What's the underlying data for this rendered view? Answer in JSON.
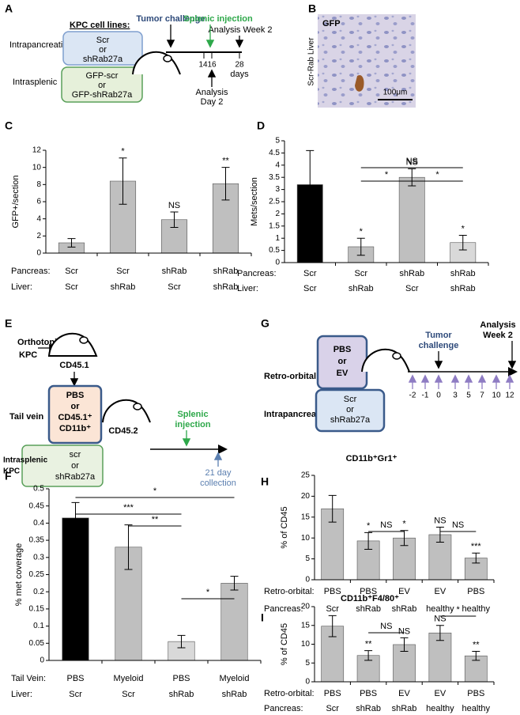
{
  "chart_data": [
    {
      "type": "bar",
      "label": "C",
      "ylabel": "GFP+/section",
      "ylim": [
        0,
        12
      ],
      "yticks": [
        0,
        2,
        4,
        6,
        8,
        10,
        12
      ],
      "values": [
        1.2,
        8.4,
        3.9,
        8.1
      ],
      "errors": [
        0.5,
        2.7,
        0.9,
        1.9
      ],
      "colors": [
        "#bfbfbf",
        "#bfbfbf",
        "#bfbfbf",
        "#bfbfbf"
      ],
      "annotations": [
        {
          "index": 1,
          "text": "*"
        },
        {
          "index": 2,
          "text": "NS"
        },
        {
          "index": 3,
          "text": "**"
        }
      ],
      "comparisons": [],
      "rows": [
        {
          "label": "Pancreas:",
          "values": [
            "Scr",
            "Scr",
            "shRab",
            "shRab"
          ]
        },
        {
          "label": "Liver:",
          "values": [
            "Scr",
            "shRab",
            "Scr",
            "shRab"
          ]
        }
      ]
    },
    {
      "type": "bar",
      "label": "D",
      "ylabel": "Mets/section",
      "ylim": [
        0,
        5
      ],
      "yticks": [
        0,
        0.5,
        1,
        1.5,
        2,
        2.5,
        3,
        3.5,
        4,
        4.5,
        5
      ],
      "values": [
        3.2,
        0.65,
        3.5,
        0.82
      ],
      "errors": [
        1.4,
        0.35,
        0.35,
        0.3
      ],
      "colors": [
        "#000000",
        "#bfbfbf",
        "#bfbfbf",
        "#d9d9d9"
      ],
      "annotations": [
        {
          "index": 1,
          "text": "*"
        },
        {
          "index": 2,
          "text": "NS"
        },
        {
          "index": 3,
          "text": "*"
        }
      ],
      "comparisons": [
        {
          "from": 1,
          "to": 2,
          "text": "*"
        },
        {
          "from": 2,
          "to": 3,
          "text": "*"
        },
        {
          "from": 1,
          "to": 3,
          "text": "NS"
        }
      ],
      "rows": [
        {
          "label": "Pancreas:",
          "values": [
            "Scr",
            "Scr",
            "shRab",
            "shRab"
          ]
        },
        {
          "label": "Liver:",
          "values": [
            "Scr",
            "shRab",
            "Scr",
            "shRab"
          ]
        }
      ]
    },
    {
      "type": "bar",
      "label": "F",
      "ylabel": "% met coverage",
      "ylim": [
        0,
        0.5
      ],
      "yticks": [
        0,
        0.05,
        0.1,
        0.15,
        0.2,
        0.25,
        0.3,
        0.35,
        0.4,
        0.45,
        0.5
      ],
      "values": [
        0.415,
        0.33,
        0.055,
        0.225
      ],
      "errors": [
        0.045,
        0.065,
        0.018,
        0.02
      ],
      "colors": [
        "#000000",
        "#bfbfbf",
        "#d9d9d9",
        "#bfbfbf"
      ],
      "annotations": [],
      "comparisons": [
        {
          "from": 0,
          "to": 3,
          "text": "*"
        },
        {
          "from": 0,
          "to": 2,
          "text": "***"
        },
        {
          "from": 1,
          "to": 2,
          "text": "**"
        },
        {
          "from": 2,
          "to": 3,
          "text": "*"
        }
      ],
      "rows": [
        {
          "label": "Tail Vein:",
          "values": [
            "PBS",
            "Myeloid",
            "PBS",
            "Myeloid"
          ]
        },
        {
          "label": "Liver:",
          "values": [
            "Scr",
            "Scr",
            "shRab",
            "shRab"
          ]
        }
      ]
    },
    {
      "type": "bar",
      "label": "H",
      "title": "CD11b⁺Gr1⁺",
      "ylabel": "% of CD45",
      "ylim": [
        0,
        25
      ],
      "yticks": [
        0,
        5,
        10,
        15,
        20,
        25
      ],
      "values": [
        17,
        9.3,
        10,
        10.8,
        5.2
      ],
      "errors": [
        3.2,
        2,
        1.8,
        1.8,
        1.2
      ],
      "colors": [
        "#bfbfbf",
        "#bfbfbf",
        "#bfbfbf",
        "#bfbfbf",
        "#bfbfbf"
      ],
      "annotations": [
        {
          "index": 1,
          "text": "*"
        },
        {
          "index": 2,
          "text": "*"
        },
        {
          "index": 3,
          "text": "NS"
        },
        {
          "index": 4,
          "text": "***"
        }
      ],
      "comparisons": [
        {
          "from": 1,
          "to": 2,
          "text": "NS"
        },
        {
          "from": 3,
          "to": 4,
          "text": "NS"
        }
      ],
      "rows": [
        {
          "label": "Retro-orbital:",
          "values": [
            "PBS",
            "PBS",
            "EV",
            "EV",
            "PBS"
          ]
        },
        {
          "label": "Pancreas:",
          "values": [
            "Scr",
            "shRab",
            "shRab",
            "healthy",
            "healthy"
          ]
        }
      ]
    },
    {
      "type": "bar",
      "label": "I",
      "title": "CD11b⁺F4/80⁺",
      "ylabel": "% of CD45",
      "ylim": [
        0,
        20
      ],
      "yticks": [
        0,
        5,
        10,
        15,
        20
      ],
      "values": [
        14.8,
        7,
        9.9,
        13,
        6.9
      ],
      "errors": [
        2.8,
        1.3,
        1.8,
        2,
        1.2
      ],
      "colors": [
        "#bfbfbf",
        "#bfbfbf",
        "#bfbfbf",
        "#bfbfbf",
        "#bfbfbf"
      ],
      "annotations": [
        {
          "index": 1,
          "text": "**"
        },
        {
          "index": 2,
          "text": "NS"
        },
        {
          "index": 3,
          "text": "NS"
        },
        {
          "index": 4,
          "text": "**"
        }
      ],
      "comparisons": [
        {
          "from": 1,
          "to": 2,
          "text": "NS"
        },
        {
          "from": 3,
          "to": 4,
          "text": "*"
        }
      ],
      "rows": [
        {
          "label": "Retro-orbital:",
          "values": [
            "PBS",
            "PBS",
            "EV",
            "EV",
            "PBS"
          ]
        },
        {
          "label": "Pancreas:",
          "values": [
            "Scr",
            "shRab",
            "shRab",
            "healthy",
            "healthy"
          ]
        }
      ]
    }
  ],
  "diagrams": {
    "A": {
      "label": "A",
      "header": "KPC cell lines:",
      "tumor_challenge": "Tumor challenge",
      "splenic_injection": "Splenic injection",
      "analysis_week": "Analysis Week 2",
      "intrapancreatic": "Intrapancreatic",
      "box1": [
        "Scr",
        "or",
        "shRab27a"
      ],
      "intrasplenic": "Intrasplenic",
      "box2": [
        "GFP-scr",
        "or",
        "GFP-shRab27a"
      ],
      "days": [
        14,
        16,
        28
      ],
      "unit": "days",
      "analysis_day": [
        "Analysis",
        "Day 2"
      ]
    },
    "B": {
      "label": "B",
      "stain": "GFP",
      "side": "Scr-Rab Liver",
      "scale": "100μm"
    },
    "E": {
      "label": "E",
      "orthotopic": [
        "Orthotopic",
        "KPC"
      ],
      "donor": "CD45.1",
      "box": [
        "PBS",
        "or",
        "CD45.1⁺",
        "CD11b⁺"
      ],
      "tail_vein": "Tail vein",
      "recipient": "CD45.2",
      "splenic": [
        "Splenic",
        "injection"
      ],
      "collection": [
        "21 day",
        "collection"
      ],
      "intrasplenic": [
        "Intrasplenic",
        "KPC"
      ],
      "box2": [
        "scr",
        "or",
        "shRab27a"
      ]
    },
    "G": {
      "label": "G",
      "retro_orbital": "Retro-orbital",
      "box1": [
        "PBS",
        "or",
        "EV"
      ],
      "intrapancreatic": "Intrapancreatic",
      "box2": [
        "Scr",
        "or",
        "shRab27a"
      ],
      "tumor": [
        "Tumor",
        "challenge"
      ],
      "analysis": [
        "Analysis",
        "Week 2"
      ],
      "days": [
        -2,
        -1,
        0,
        3,
        5,
        7,
        10,
        12
      ]
    }
  }
}
